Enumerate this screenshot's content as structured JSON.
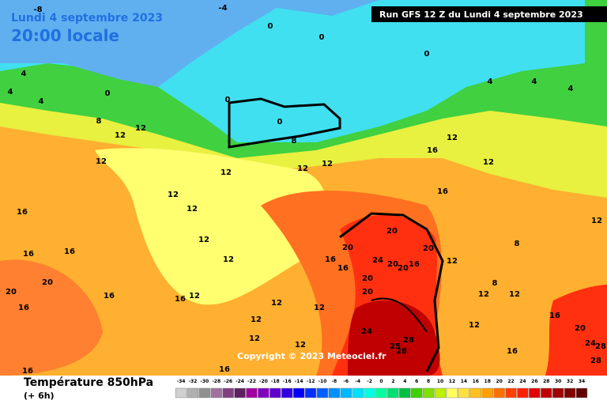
{
  "header": {
    "date": "Lundi 4 septembre 2023",
    "time": "20:00 locale",
    "run": "Run GFS 12 Z du Lundi 4 septembre 2023",
    "copyright": "Copyright © 2023 Meteociel.fr"
  },
  "legend": {
    "title": "Température 850hPa",
    "step": "(+ 6h)",
    "ticks": [
      -34,
      -32,
      -30,
      -28,
      -26,
      -24,
      -22,
      -20,
      -18,
      -16,
      -14,
      -12,
      -10,
      -8,
      -6,
      -4,
      -2,
      0,
      2,
      4,
      6,
      8,
      10,
      12,
      14,
      16,
      18,
      20,
      22,
      24,
      26,
      28,
      30,
      32,
      34
    ],
    "colors": [
      "#d0d0d0",
      "#b0b0b0",
      "#909090",
      "#a070a0",
      "#804080",
      "#602060",
      "#a000a0",
      "#8000c0",
      "#6000d0",
      "#3000e0",
      "#0000ff",
      "#0030ff",
      "#0060ff",
      "#0090ff",
      "#00b8ff",
      "#00e0ff",
      "#00ffe0",
      "#00ffa0",
      "#00e070",
      "#00c040",
      "#40d000",
      "#80e000",
      "#c0f000",
      "#ffff60",
      "#ffe040",
      "#ffc020",
      "#ffa000",
      "#ff7000",
      "#ff4000",
      "#ff2000",
      "#e00000",
      "#c00000",
      "#a00000",
      "#800000",
      "#600000"
    ]
  },
  "contour_labels": [
    -8,
    -4,
    0,
    0,
    0,
    4,
    4,
    4,
    0,
    0,
    0,
    4,
    4,
    4,
    8,
    8,
    12,
    12,
    12,
    12,
    12,
    12,
    12,
    12,
    12,
    12,
    16,
    12,
    12,
    16,
    16,
    16,
    16,
    20,
    20,
    16,
    16,
    16,
    12,
    12,
    12,
    12,
    12,
    12,
    16,
    16,
    20,
    20,
    24,
    20,
    20,
    20,
    16,
    16,
    16,
    20,
    20,
    12,
    8,
    8,
    12,
    12,
    12,
    16,
    16,
    12,
    20,
    24,
    28,
    28,
    24,
    28,
    25,
    28
  ]
}
